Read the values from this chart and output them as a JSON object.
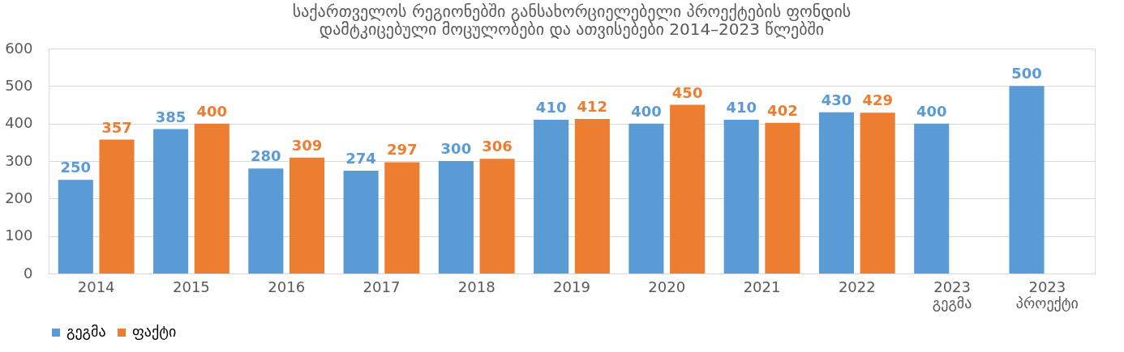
{
  "chart_data": {
    "type": "bar",
    "title": [
      "საქართველოს რეგიონებში განსახორციელებელი პროექტების ფონდის",
      "დამტკიცებული მოცულობები და ათვისებები 2014–2023 წლებში"
    ],
    "categories": [
      "2014",
      "2015",
      "2016",
      "2017",
      "2018",
      "2019",
      "2020",
      "2021",
      "2022",
      "2023\nგეგმა",
      "2023\nპროექტი"
    ],
    "series": [
      {
        "name": "გეგმა",
        "color": "#5b9bd5",
        "values": [
          250,
          385,
          280,
          274,
          300,
          410,
          400,
          410,
          430,
          400,
          500
        ]
      },
      {
        "name": "ფაქტი",
        "color": "#ed7d31",
        "values": [
          357,
          400,
          309,
          297,
          306,
          412,
          450,
          402,
          429,
          null,
          null
        ]
      }
    ],
    "ylim": [
      0,
      600
    ],
    "yticks": [
      0,
      100,
      200,
      300,
      400,
      500,
      600
    ],
    "grid": "y",
    "legend": "bottom",
    "data_labels": true
  }
}
